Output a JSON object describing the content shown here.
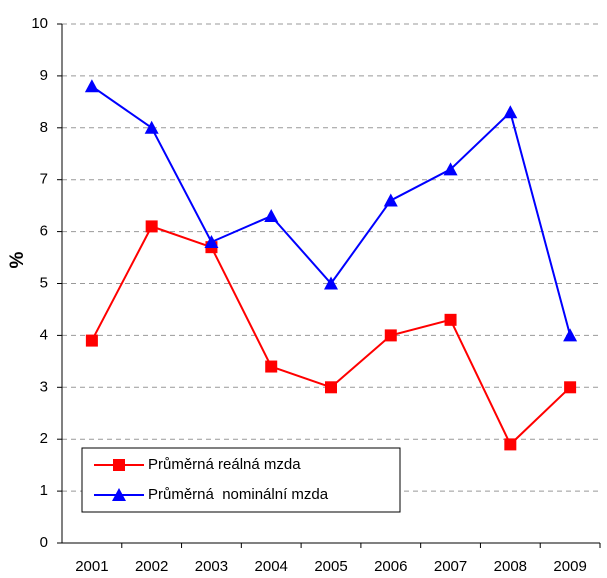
{
  "chart_data": {
    "type": "line",
    "ylabel": "%",
    "categories": [
      "2001",
      "2002",
      "2003",
      "2004",
      "2005",
      "2006",
      "2007",
      "2008",
      "2009"
    ],
    "series": [
      {
        "name": "Průměrná reálná mzda",
        "color": "#ff0000",
        "marker": "square",
        "values": [
          3.9,
          6.1,
          5.7,
          3.4,
          3.0,
          4.0,
          4.3,
          1.9,
          3.0
        ]
      },
      {
        "name": "Průměrná  nominální mzda",
        "color": "#0000ff",
        "marker": "triangle",
        "values": [
          8.8,
          8.0,
          5.8,
          6.3,
          5.0,
          6.6,
          7.2,
          8.3,
          4.0
        ]
      }
    ],
    "ylim": [
      0,
      10
    ],
    "yticks": [
      0,
      1,
      2,
      3,
      4,
      5,
      6,
      7,
      8,
      9,
      10
    ],
    "grid": true,
    "legend": "lower left"
  }
}
